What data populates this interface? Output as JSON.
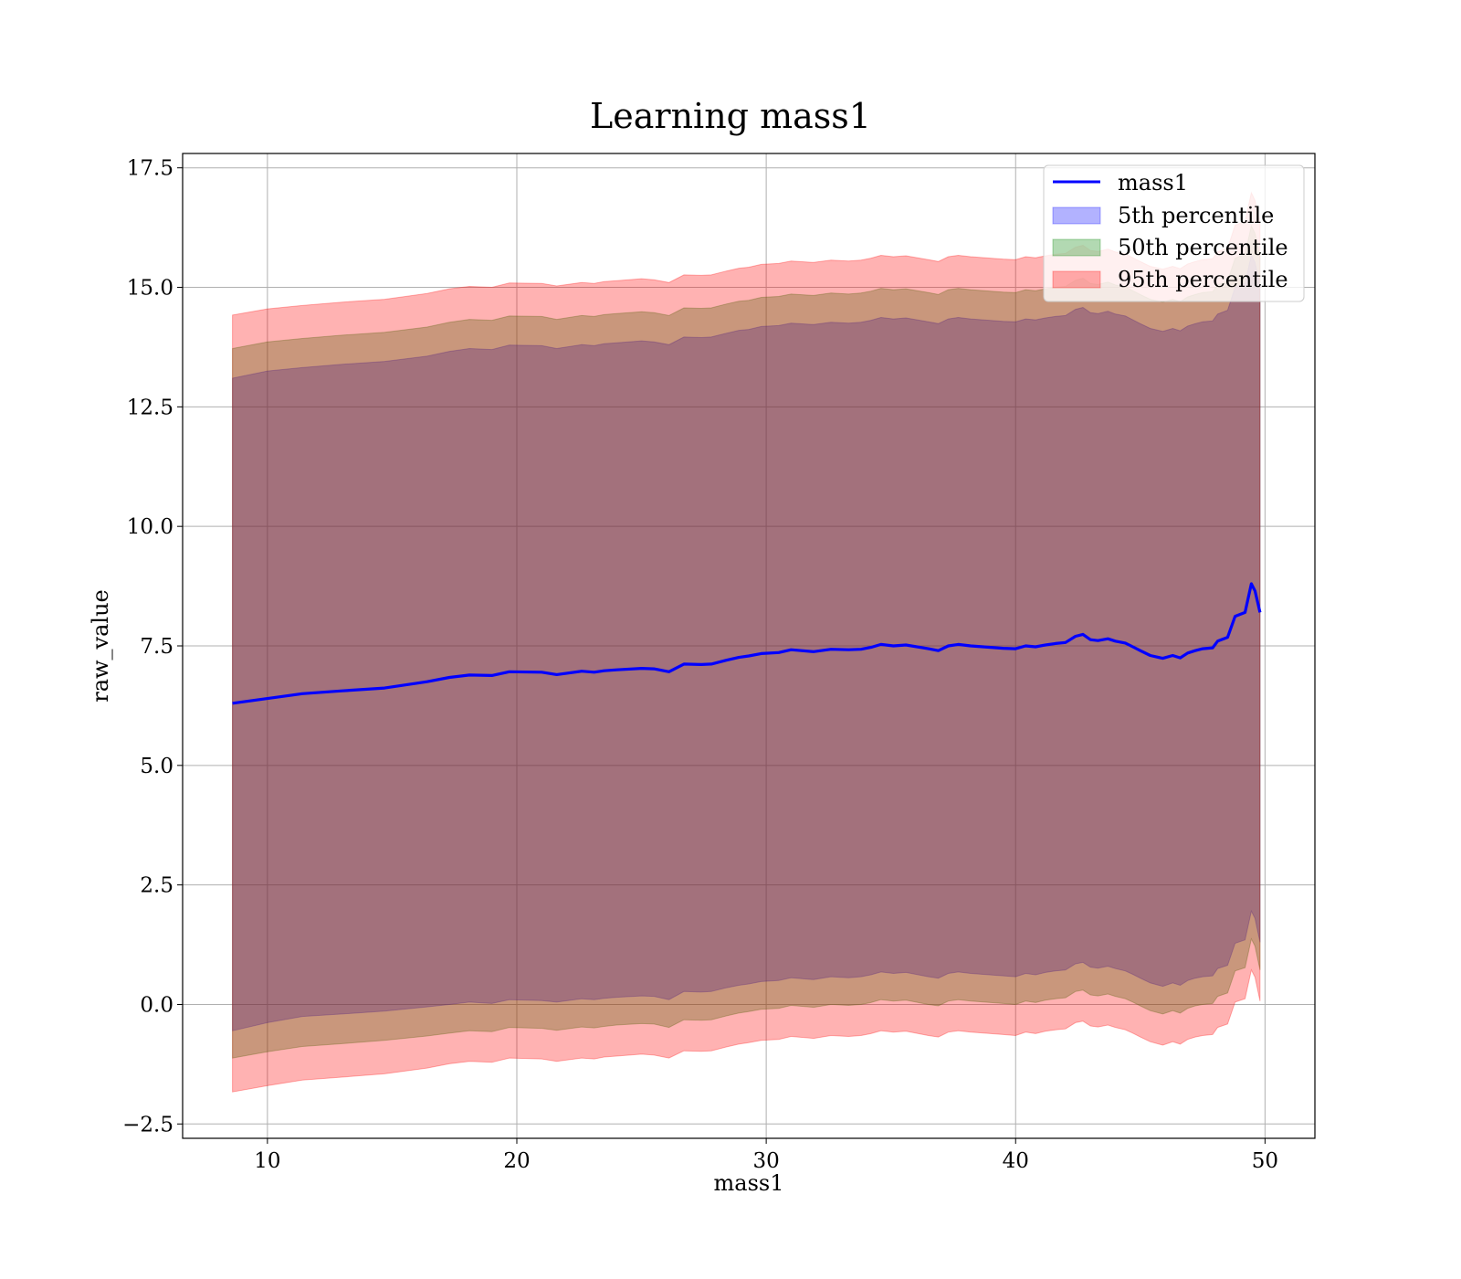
{
  "chart_data": {
    "type": "area",
    "title": "Learning mass1",
    "xlabel": "mass1",
    "ylabel": "raw_value",
    "xlim": [
      6.6,
      52.0
    ],
    "ylim": [
      -2.8,
      17.8
    ],
    "xticks": [
      10,
      20,
      30,
      40,
      50
    ],
    "xtick_labels": [
      "10",
      "20",
      "30",
      "40",
      "50"
    ],
    "yticks": [
      -2.5,
      0.0,
      2.5,
      5.0,
      7.5,
      10.0,
      12.5,
      15.0,
      17.5
    ],
    "ytick_labels": [
      "−2.5",
      "0.0",
      "2.5",
      "5.0",
      "7.5",
      "10.0",
      "12.5",
      "15.0",
      "17.5"
    ],
    "grid": true,
    "legend_position": "upper right",
    "x": [
      8.6,
      10.0,
      11.4,
      13.0,
      14.7,
      16.4,
      17.3,
      18.1,
      19.0,
      19.7,
      21.0,
      21.6,
      22.6,
      23.1,
      23.5,
      24.0,
      25.0,
      25.5,
      26.1,
      26.7,
      27.4,
      27.8,
      28.4,
      28.9,
      29.3,
      29.8,
      30.5,
      31.0,
      31.9,
      32.6,
      33.3,
      33.8,
      34.2,
      34.6,
      35.1,
      35.6,
      36.5,
      36.9,
      37.3,
      37.7,
      38.2,
      39.5,
      40.0,
      40.4,
      40.8,
      41.2,
      41.6,
      42.0,
      42.4,
      42.7,
      43.0,
      43.3,
      43.7,
      44.0,
      44.4,
      44.7,
      45.0,
      45.4,
      45.9,
      46.3,
      46.6,
      46.9,
      47.2,
      47.5,
      47.9,
      48.1,
      48.5,
      48.8,
      49.2,
      49.45,
      49.6,
      49.8
    ],
    "series": [
      {
        "name": "mass1",
        "kind": "line",
        "color": "#0000ff",
        "values": [
          6.3,
          6.4,
          6.5,
          6.56,
          6.62,
          6.75,
          6.84,
          6.89,
          6.88,
          6.96,
          6.95,
          6.9,
          6.97,
          6.95,
          6.98,
          7.0,
          7.03,
          7.02,
          6.96,
          7.12,
          7.11,
          7.12,
          7.2,
          7.26,
          7.29,
          7.34,
          7.36,
          7.42,
          7.38,
          7.43,
          7.42,
          7.43,
          7.47,
          7.53,
          7.5,
          7.52,
          7.44,
          7.4,
          7.5,
          7.53,
          7.5,
          7.45,
          7.44,
          7.5,
          7.48,
          7.52,
          7.55,
          7.57,
          7.7,
          7.74,
          7.63,
          7.61,
          7.65,
          7.6,
          7.56,
          7.48,
          7.4,
          7.3,
          7.24,
          7.3,
          7.25,
          7.35,
          7.4,
          7.44,
          7.46,
          7.6,
          7.68,
          8.12,
          8.2,
          8.8,
          8.65,
          8.2
        ]
      },
      {
        "name": "5th percentile",
        "kind": "band",
        "color": "#0000ff",
        "lower": [
          -0.55,
          -0.38,
          -0.25,
          -0.2,
          -0.14,
          -0.05,
          0.0,
          0.05,
          0.02,
          0.1,
          0.08,
          0.05,
          0.12,
          0.1,
          0.13,
          0.15,
          0.18,
          0.17,
          0.1,
          0.27,
          0.26,
          0.27,
          0.35,
          0.4,
          0.43,
          0.48,
          0.5,
          0.56,
          0.52,
          0.58,
          0.56,
          0.58,
          0.62,
          0.68,
          0.65,
          0.67,
          0.58,
          0.55,
          0.65,
          0.68,
          0.65,
          0.6,
          0.58,
          0.65,
          0.62,
          0.67,
          0.7,
          0.72,
          0.85,
          0.88,
          0.78,
          0.76,
          0.8,
          0.75,
          0.7,
          0.63,
          0.55,
          0.45,
          0.38,
          0.45,
          0.4,
          0.5,
          0.55,
          0.58,
          0.6,
          0.75,
          0.82,
          1.28,
          1.35,
          1.95,
          1.8,
          1.3
        ],
        "upper": [
          13.1,
          13.25,
          13.32,
          13.39,
          13.45,
          13.56,
          13.66,
          13.72,
          13.7,
          13.79,
          13.78,
          13.72,
          13.8,
          13.78,
          13.82,
          13.84,
          13.88,
          13.86,
          13.8,
          13.96,
          13.95,
          13.96,
          14.04,
          14.1,
          14.12,
          14.18,
          14.2,
          14.25,
          14.22,
          14.27,
          14.25,
          14.27,
          14.31,
          14.37,
          14.34,
          14.36,
          14.28,
          14.24,
          14.34,
          14.37,
          14.34,
          14.29,
          14.28,
          14.34,
          14.32,
          14.36,
          14.39,
          14.41,
          14.54,
          14.58,
          14.47,
          14.45,
          14.5,
          14.44,
          14.4,
          14.32,
          14.24,
          14.14,
          14.08,
          14.14,
          14.09,
          14.19,
          14.24,
          14.28,
          14.3,
          14.44,
          14.52,
          15.0,
          15.08,
          15.68,
          15.52,
          15.05
        ]
      },
      {
        "name": "50th percentile",
        "kind": "band",
        "color": "#008000",
        "lower": [
          -1.12,
          -0.99,
          -0.88,
          -0.82,
          -0.75,
          -0.66,
          -0.6,
          -0.55,
          -0.57,
          -0.48,
          -0.5,
          -0.54,
          -0.47,
          -0.49,
          -0.46,
          -0.43,
          -0.4,
          -0.41,
          -0.48,
          -0.32,
          -0.33,
          -0.32,
          -0.24,
          -0.18,
          -0.15,
          -0.1,
          -0.08,
          -0.02,
          -0.06,
          0.0,
          -0.02,
          0.0,
          0.04,
          0.1,
          0.07,
          0.09,
          0.0,
          -0.03,
          0.07,
          0.1,
          0.07,
          0.02,
          0.0,
          0.07,
          0.04,
          0.09,
          0.12,
          0.14,
          0.27,
          0.3,
          0.2,
          0.18,
          0.22,
          0.17,
          0.12,
          0.05,
          -0.03,
          -0.13,
          -0.2,
          -0.13,
          -0.18,
          -0.08,
          -0.03,
          0.0,
          0.02,
          0.17,
          0.24,
          0.7,
          0.77,
          1.37,
          1.22,
          0.72
        ],
        "upper": [
          13.72,
          13.86,
          13.93,
          14.0,
          14.06,
          14.17,
          14.27,
          14.33,
          14.31,
          14.4,
          14.39,
          14.33,
          14.41,
          14.39,
          14.43,
          14.45,
          14.49,
          14.47,
          14.41,
          14.57,
          14.56,
          14.57,
          14.65,
          14.71,
          14.73,
          14.79,
          14.81,
          14.86,
          14.83,
          14.88,
          14.86,
          14.88,
          14.92,
          14.98,
          14.95,
          14.97,
          14.89,
          14.85,
          14.95,
          14.98,
          14.95,
          14.9,
          14.89,
          14.95,
          14.93,
          14.97,
          15.0,
          15.02,
          15.15,
          15.19,
          15.08,
          15.06,
          15.11,
          15.05,
          15.01,
          14.93,
          14.85,
          14.75,
          14.69,
          14.75,
          14.7,
          14.8,
          14.85,
          14.89,
          14.91,
          15.05,
          15.13,
          15.61,
          15.69,
          16.29,
          16.13,
          15.66
        ]
      },
      {
        "name": "95th percentile",
        "kind": "band",
        "color": "#ff0000",
        "lower": [
          -1.83,
          -1.7,
          -1.58,
          -1.52,
          -1.45,
          -1.33,
          -1.24,
          -1.19,
          -1.21,
          -1.12,
          -1.14,
          -1.19,
          -1.12,
          -1.14,
          -1.1,
          -1.08,
          -1.04,
          -1.06,
          -1.12,
          -0.97,
          -0.98,
          -0.97,
          -0.89,
          -0.83,
          -0.8,
          -0.75,
          -0.73,
          -0.67,
          -0.71,
          -0.65,
          -0.67,
          -0.65,
          -0.61,
          -0.55,
          -0.58,
          -0.56,
          -0.65,
          -0.68,
          -0.58,
          -0.55,
          -0.58,
          -0.63,
          -0.65,
          -0.58,
          -0.61,
          -0.56,
          -0.53,
          -0.51,
          -0.38,
          -0.35,
          -0.45,
          -0.47,
          -0.43,
          -0.48,
          -0.53,
          -0.6,
          -0.68,
          -0.78,
          -0.85,
          -0.78,
          -0.83,
          -0.73,
          -0.68,
          -0.65,
          -0.63,
          -0.48,
          -0.41,
          0.05,
          0.12,
          0.72,
          0.57,
          0.07
        ],
        "upper": [
          14.42,
          14.55,
          14.62,
          14.69,
          14.75,
          14.87,
          14.97,
          15.02,
          15.0,
          15.09,
          15.08,
          15.03,
          15.1,
          15.08,
          15.12,
          15.14,
          15.18,
          15.16,
          15.1,
          15.26,
          15.25,
          15.26,
          15.34,
          15.4,
          15.42,
          15.48,
          15.5,
          15.55,
          15.52,
          15.57,
          15.55,
          15.57,
          15.61,
          15.67,
          15.64,
          15.66,
          15.58,
          15.54,
          15.64,
          15.67,
          15.64,
          15.59,
          15.58,
          15.64,
          15.62,
          15.66,
          15.69,
          15.71,
          15.84,
          15.88,
          15.77,
          15.75,
          15.8,
          15.74,
          15.7,
          15.62,
          15.54,
          15.44,
          15.38,
          15.44,
          15.39,
          15.49,
          15.54,
          15.58,
          15.6,
          15.74,
          15.82,
          16.3,
          16.38,
          16.98,
          16.82,
          16.35
        ]
      }
    ]
  }
}
